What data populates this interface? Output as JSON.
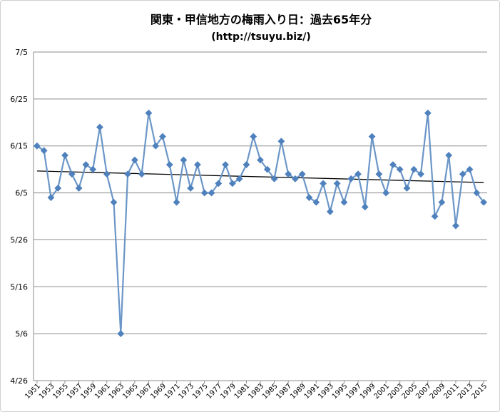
{
  "chart_data": {
    "type": "line",
    "title": "関東・甲信地方の梅雨入り日：過去65年分",
    "subtitle": "(http://tsuyu.biz/)",
    "y_tick_labels": [
      "7/5",
      "6/25",
      "6/15",
      "6/5",
      "5/26",
      "5/16",
      "5/6",
      "4/26"
    ],
    "y_tick_values": [
      0,
      10,
      20,
      30,
      40,
      50,
      60,
      70
    ],
    "y_unit_note": "",
    "ylim": [
      0,
      70
    ],
    "x_tick_labels": [
      "1951",
      "1953",
      "1955",
      "1957",
      "1959",
      "1961",
      "1963",
      "1965",
      "1967",
      "1969",
      "1971",
      "1973",
      "1975",
      "1977",
      "1979",
      "1981",
      "1983",
      "1985",
      "1987",
      "1989",
      "1991",
      "1993",
      "1995",
      "1997",
      "1999",
      "2001",
      "2003",
      "2005",
      "2007",
      "2009",
      "2011",
      "2013",
      "2015"
    ],
    "grid": true,
    "legend": "none",
    "series": [
      {
        "color": "#4f81bd",
        "x": [
          1951,
          1952,
          1953,
          1954,
          1955,
          1956,
          1957,
          1958,
          1959,
          1960,
          1961,
          1962,
          1963,
          1964,
          1965,
          1966,
          1967,
          1968,
          1969,
          1970,
          1971,
          1972,
          1973,
          1974,
          1975,
          1976,
          1977,
          1978,
          1979,
          1980,
          1981,
          1982,
          1983,
          1984,
          1985,
          1986,
          1987,
          1988,
          1989,
          1990,
          1991,
          1992,
          1993,
          1994,
          1995,
          1996,
          1997,
          1998,
          1999,
          2000,
          2001,
          2002,
          2003,
          2004,
          2005,
          2006,
          2007,
          2008,
          2009,
          2010,
          2011,
          2012,
          2013,
          2014,
          2015
        ],
        "y": [
          "6/15",
          "6/14",
          "6/4",
          "6/6",
          "6/13",
          "6/9",
          "6/6",
          "6/11",
          "6/10",
          "6/19",
          "6/9",
          "6/3",
          "5/6",
          "6/9",
          "6/12",
          "6/9",
          "6/22",
          "6/15",
          "6/17",
          "6/11",
          "6/3",
          "6/12",
          "6/6",
          "6/11",
          "6/5",
          "6/5",
          "6/7",
          "6/11",
          "6/7",
          "6/8",
          "6/11",
          "6/17",
          "6/12",
          "6/10",
          "6/8",
          "6/16",
          "6/9",
          "6/8",
          "6/9",
          "6/4",
          "6/3",
          "6/7",
          "6/1",
          "6/7",
          "6/3",
          "6/8",
          "6/9",
          "6/2",
          "6/17",
          "6/9",
          "6/5",
          "6/11",
          "6/10",
          "6/6",
          "6/10",
          "6/9",
          "6/22",
          "5/31",
          "6/3",
          "6/13",
          "5/29",
          "6/9",
          "6/10",
          "6/5",
          "6/3"
        ]
      }
    ],
    "trendline": {
      "type": "linear",
      "color": "#000000"
    }
  }
}
